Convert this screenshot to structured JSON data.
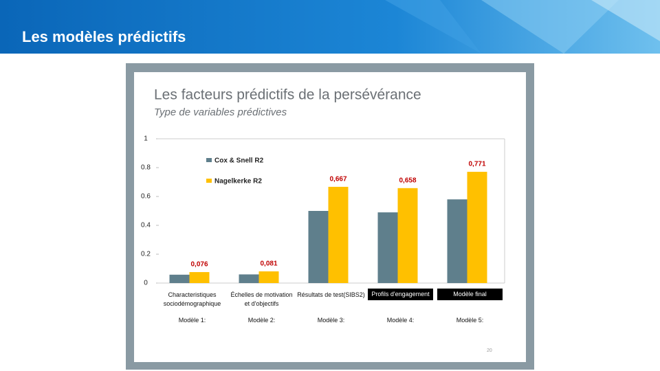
{
  "slide": {
    "title": "Les modèles prédictifs",
    "page_number": "20"
  },
  "chart_data": {
    "type": "bar",
    "title": "Les facteurs prédictifs de la persévérance",
    "subtitle": "Type de variables prédictives",
    "categories": [
      "Characteristiques sociodémographique",
      "Échelles de motivation et d'objectifs",
      "Résultats de test(SIBS2)",
      "Profils d'engagement",
      "Modèle final"
    ],
    "highlighted_categories": [
      3,
      4
    ],
    "model_labels": [
      "Modèle 1:",
      "Modèle 2:",
      "Modèle 3:",
      "Modèle 4:",
      "Modèle 5:"
    ],
    "series": [
      {
        "name": "Cox & Snell R2",
        "color": "#5f7f8c",
        "values": [
          0.058,
          0.06,
          0.5,
          0.49,
          0.58
        ]
      },
      {
        "name": "Nagelkerke R2",
        "color": "#ffc000",
        "values": [
          0.076,
          0.081,
          0.667,
          0.658,
          0.771
        ],
        "value_labels": [
          "0,076",
          "0,081",
          "0,667",
          "0,658",
          "0,771"
        ]
      }
    ],
    "ylim": [
      0,
      1
    ],
    "yticks": [
      0,
      0.2,
      0.4,
      0.6,
      0.8,
      1
    ],
    "grid": false
  }
}
